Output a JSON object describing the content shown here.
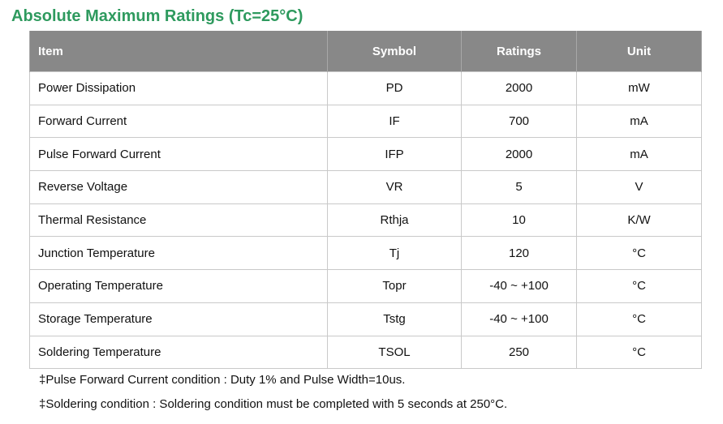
{
  "title": "Absolute Maximum Ratings (Tc=25°C)",
  "table": {
    "headers": [
      "Item",
      "Symbol",
      "Ratings",
      "Unit"
    ],
    "rows": [
      [
        "Power Dissipation",
        "PD",
        "2000",
        "mW"
      ],
      [
        "Forward Current",
        "IF",
        "700",
        "mA"
      ],
      [
        "Pulse Forward Current",
        "IFP",
        "2000",
        "mA"
      ],
      [
        "Reverse Voltage",
        "VR",
        "5",
        "V"
      ],
      [
        "Thermal Resistance",
        "Rthja",
        "10",
        "K/W"
      ],
      [
        "Junction Temperature",
        "Tj",
        "120",
        "°C"
      ],
      [
        "Operating Temperature",
        "Topr",
        "-40 ~ +100",
        "°C"
      ],
      [
        "Storage Temperature",
        "Tstg",
        "-40 ~ +100",
        "°C"
      ],
      [
        "Soldering Temperature",
        "TSOL",
        "250",
        "°C"
      ]
    ]
  },
  "notes": [
    "‡Pulse Forward Current condition : Duty 1% and Pulse Width=10us.",
    "‡Soldering condition : Soldering condition must be completed with 5 seconds at 250°C."
  ]
}
